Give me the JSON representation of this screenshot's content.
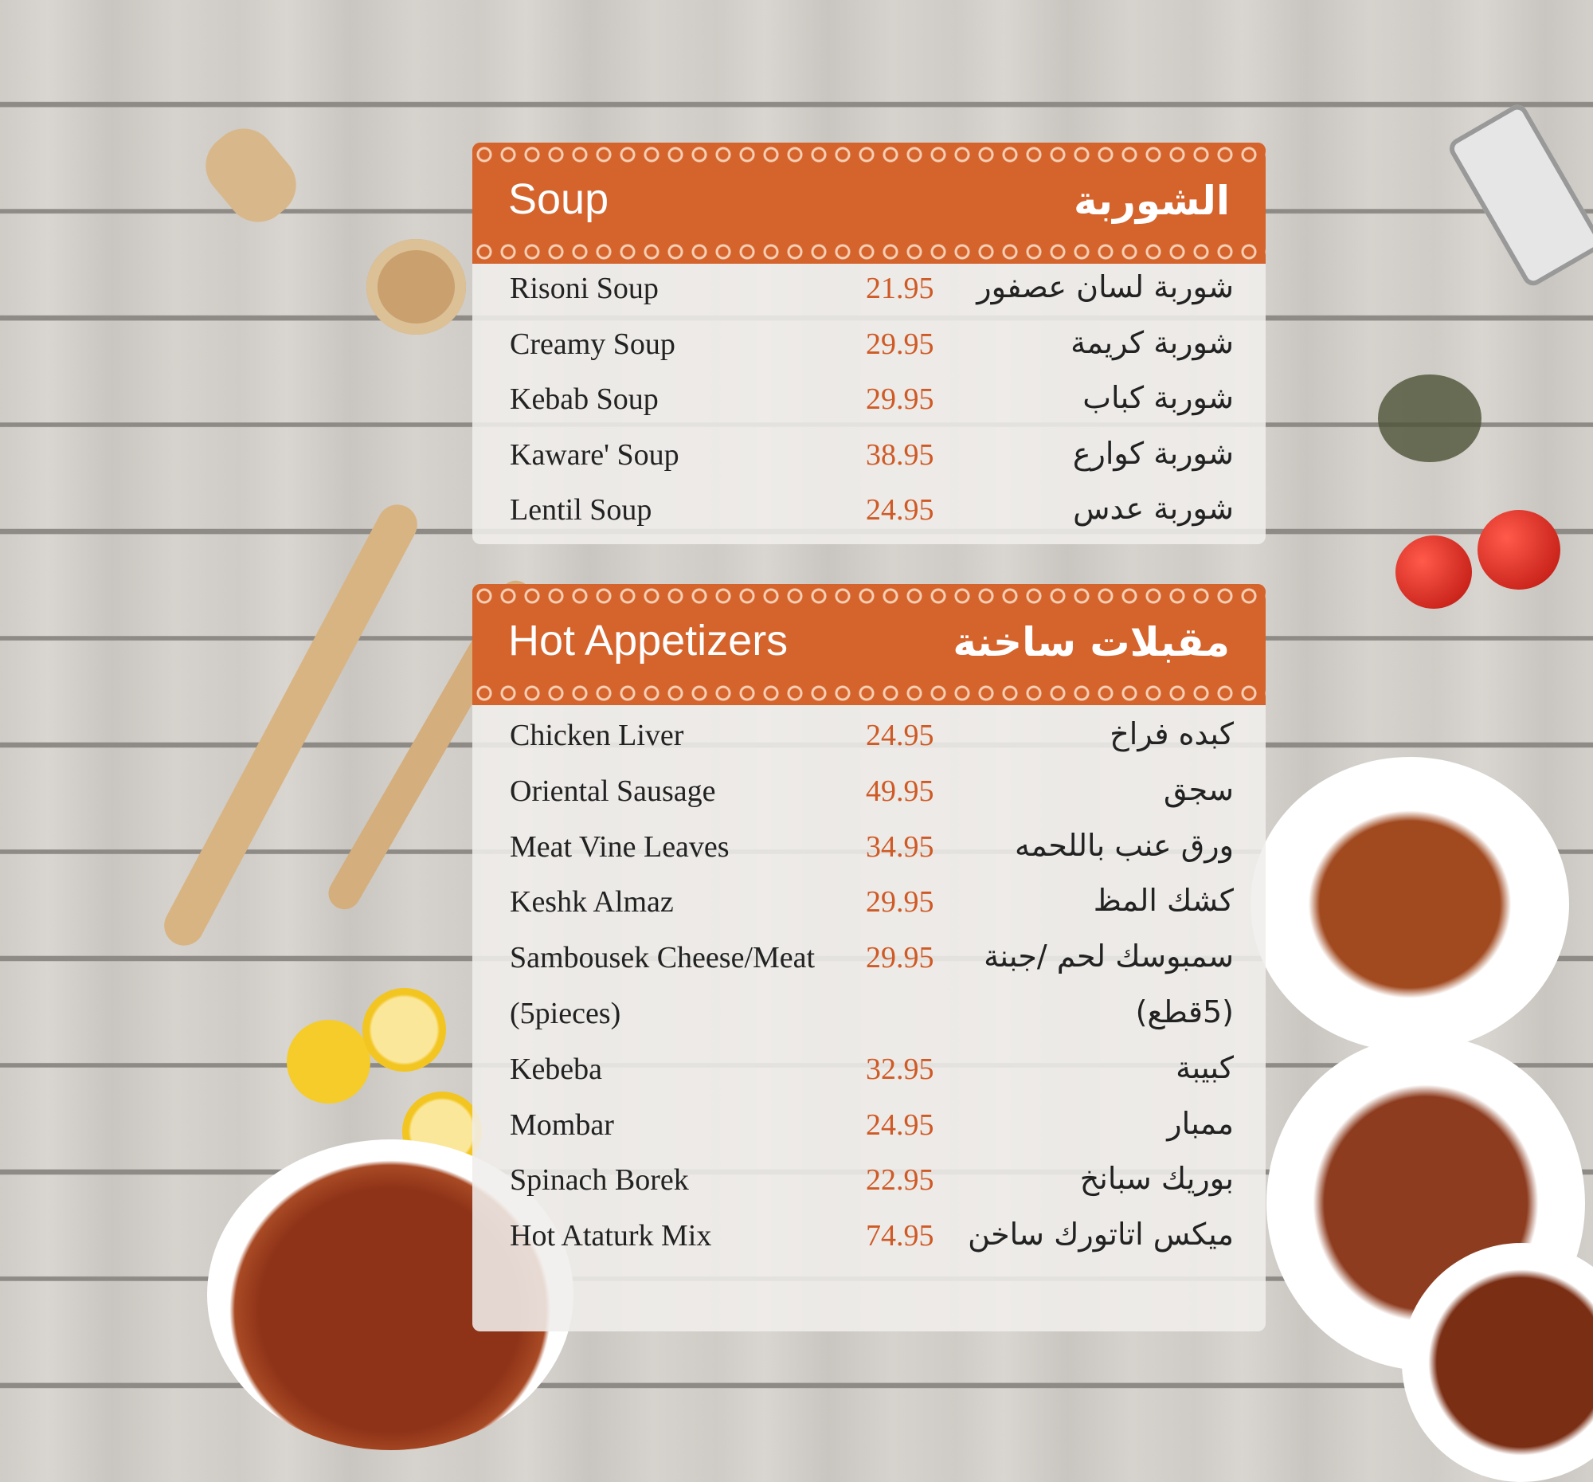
{
  "colors": {
    "accent": "#d5632c",
    "price": "#cf5a25",
    "text": "#222222"
  },
  "soup": {
    "title": "Soup",
    "title_ar": "الشوربة",
    "items": [
      {
        "name": "Risoni Soup",
        "price": "21.95",
        "name_ar": "شوربة لسان عصفور"
      },
      {
        "name": "Creamy Soup",
        "price": "29.95",
        "name_ar": "شوربة كريمة"
      },
      {
        "name": "Kebab Soup",
        "price": "29.95",
        "name_ar": "شوربة كباب"
      },
      {
        "name": "Kaware' Soup",
        "price": "38.95",
        "name_ar": "شوربة كوارع"
      },
      {
        "name": "Lentil Soup",
        "price": "24.95",
        "name_ar": "شوربة عدس"
      }
    ]
  },
  "hot": {
    "title": "Hot Appetizers",
    "title_ar": "مقبلات ساخنة",
    "items": [
      {
        "name": "Chicken Liver",
        "price": "24.95",
        "name_ar": "كبده فراخ"
      },
      {
        "name": "Oriental Sausage",
        "price": "49.95",
        "name_ar": "سجق"
      },
      {
        "name": "Meat Vine Leaves",
        "price": "34.95",
        "name_ar": "ورق عنب باللحمه"
      },
      {
        "name": "Keshk Almaz",
        "price": "29.95",
        "name_ar": "كشك المظ"
      },
      {
        "name": "Sambousek Cheese/Meat",
        "price": "29.95",
        "name_ar": "سمبوسك لحم /جبنة"
      },
      {
        "name": "(5pieces)",
        "price": "",
        "name_ar": "(5قطع)"
      },
      {
        "name": "Kebeba",
        "price": "32.95",
        "name_ar": "كبيبة"
      },
      {
        "name": "Mombar",
        "price": "24.95",
        "name_ar": "ممبار"
      },
      {
        "name": "Spinach Borek",
        "price": "22.95",
        "name_ar": "بوريك سبانخ"
      },
      {
        "name": "Hot Ataturk Mix",
        "price": "74.95",
        "name_ar": "ميكس اتاتورك ساخن"
      }
    ]
  }
}
